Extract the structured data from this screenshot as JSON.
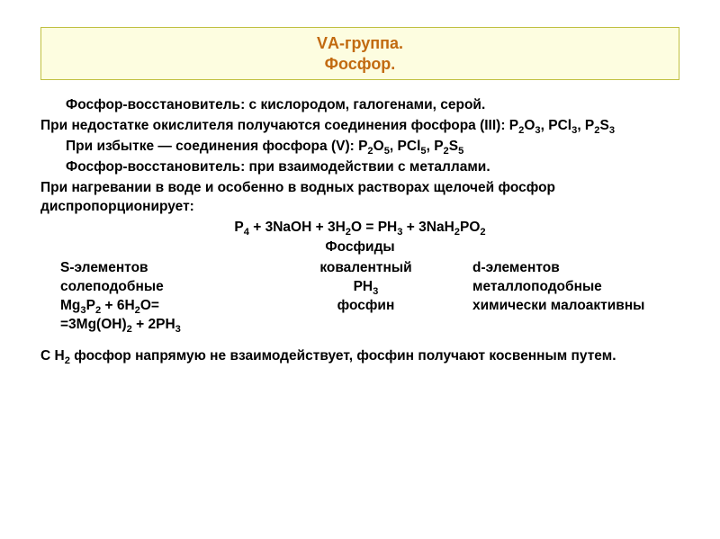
{
  "title": {
    "line1": "VА-группа.",
    "line2": "Фосфор."
  },
  "p1_a": "Фосфор-восстановитель: с кислородом, галогенами, серой.",
  "p1_b": "При недостатке окислителя получаются соединения фосфора (III): P2O3, PCl3, P2S3",
  "p2": "При избытке — соединения фосфора (V): P2O5, PCl5, P2S5",
  "p3_a": "Фосфор-восстановитель: при взаимодействии с металлами.",
  "p3_b": "При нагревании в воде и особенно в водных растворах щелочей фосфор диспропорционирует:",
  "eq1": "P4 + 3NaOH + 3H2O = PH3 + 3NaH2PO2",
  "phosphides_title": "Фосфиды",
  "s_row1": "S-элементов",
  "s_row2": "солеподобные",
  "s_row3": "Mg3P2 + 6H2O=",
  "s_row4": "=3Mg(OH)2 + 2PH3",
  "c_row1": "ковалентный",
  "c_row2": "PH3",
  "c_row3": "фосфин",
  "d_row1": "d-элементов",
  "d_row2": "металлоподобные",
  "d_row3": "химически малоактивны",
  "p_last": "С H2 фосфор напрямую не взаимодействует, фосфин получают косвенным путем.",
  "colors": {
    "title_text": "#c26a10",
    "title_bg": "#fdfde0",
    "title_border": "#c0c040",
    "body_text": "#000000",
    "page_bg": "#ffffff"
  },
  "fonts": {
    "title_size_pt": 14,
    "body_size_pt": 12,
    "family": "Arial"
  }
}
